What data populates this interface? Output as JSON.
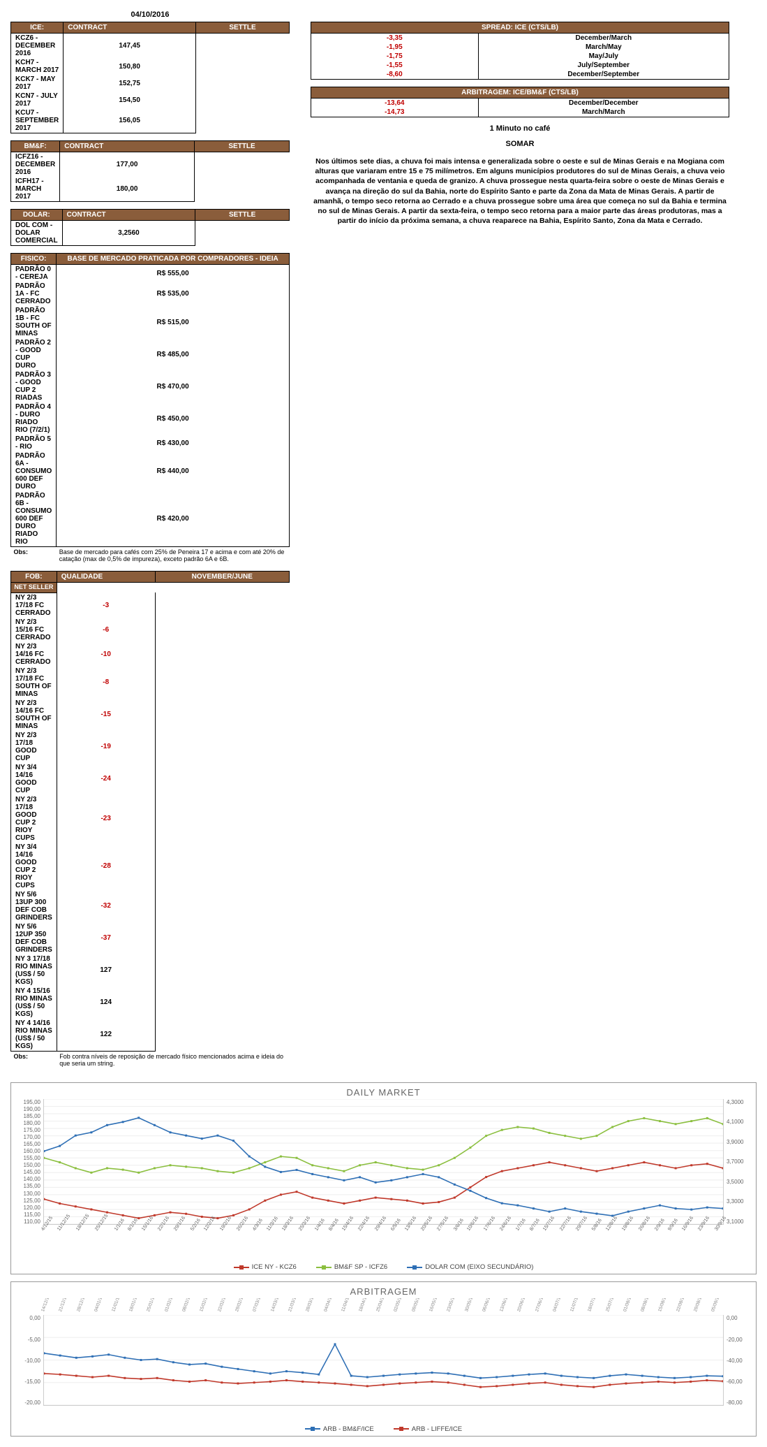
{
  "date": "04/10/2016",
  "colors": {
    "header_bg": "#8a5d3b",
    "header_fg": "#ffffff",
    "negative": "#c00000",
    "series_ice": "#c0392b",
    "series_bmf": "#8bbf3f",
    "series_dolar": "#2e6fb5",
    "series_arb1": "#2e6fb5",
    "series_arb2": "#c0392b",
    "grid": "#eeeeee",
    "axis_text": "#666666"
  },
  "ice": {
    "label": "ICE:",
    "headers": [
      "CONTRACT",
      "SETTLE"
    ],
    "rows": [
      [
        "KCZ6 - DECEMBER 2016",
        "147,45"
      ],
      [
        "KCH7 - MARCH 2017",
        "150,80"
      ],
      [
        "KCK7 - MAY 2017",
        "152,75"
      ],
      [
        "KCN7 - JULY 2017",
        "154,50"
      ],
      [
        "KCU7 - SEPTEMBER 2017",
        "156,05"
      ]
    ]
  },
  "spread": {
    "title": "SPREAD: ICE (CTS/LB)",
    "rows": [
      [
        "-3,35",
        "December/March"
      ],
      [
        "-1,95",
        "March/May"
      ],
      [
        "-1,75",
        "May/July"
      ],
      [
        "-1,55",
        "July/September"
      ],
      [
        "-8,60",
        "December/September"
      ]
    ]
  },
  "bmf": {
    "label": "BM&F:",
    "headers": [
      "CONTRACT",
      "SETTLE"
    ],
    "rows": [
      [
        "ICFZ16 - DECEMBER 2016",
        "177,00"
      ],
      [
        "ICFH17 - MARCH 2017",
        "180,00"
      ]
    ]
  },
  "arbitragem_table": {
    "title": "ARBITRAGEM: ICE/BM&F (CTS/LB)",
    "rows": [
      [
        "-13,64",
        "December/December"
      ],
      [
        "-14,73",
        "March/March"
      ]
    ]
  },
  "dolar": {
    "label": "DOLAR:",
    "headers": [
      "CONTRACT",
      "SETTLE"
    ],
    "rows": [
      [
        "DOL COM - DOLAR COMERCIAL",
        "3,2560"
      ]
    ]
  },
  "fisico": {
    "label": "FISICO:",
    "title": "BASE DE MERCADO PRATICADA POR COMPRADORES - IDEIA",
    "rows": [
      [
        "PADRÃO 0 - CEREJA",
        "R$ 555,00"
      ],
      [
        "PADRÃO 1A - FC CERRADO",
        "R$ 535,00"
      ],
      [
        "PADRÃO 1B - FC SOUTH OF MINAS",
        "R$ 515,00"
      ],
      [
        "PADRÃO 2 - GOOD CUP DURO",
        "R$ 485,00"
      ],
      [
        "PADRÃO 3 - GOOD CUP 2 RIADAS",
        "R$ 470,00"
      ],
      [
        "PADRÃO 4 - DURO RIADO RIO (7/2/1)",
        "R$ 450,00"
      ],
      [
        "PADRÃO 5 - RIO",
        "R$ 430,00"
      ],
      [
        "PADRÃO 6A - CONSUMO 600 DEF DURO",
        "R$ 440,00"
      ],
      [
        "PADRÃO 6B - CONSUMO 600 DEF DURO RIADO RIO",
        "R$ 420,00"
      ]
    ],
    "obs_label": "Obs:",
    "obs": "Base de mercado para cafés com 25% de Peneira 17 e acima e com até 20% de catação (max de 0,5% de impureza), exceto padrão 6A e 6B."
  },
  "fob": {
    "label": "FOB:",
    "side_label": "NET SELLER",
    "headers": [
      "QUALIDADE",
      "NOVEMBER/JUNE"
    ],
    "rows": [
      [
        "NY 2/3 17/18 FC CERRADO",
        "-3",
        true
      ],
      [
        "NY 2/3 15/16 FC CERRADO",
        "-6",
        true
      ],
      [
        "NY 2/3 14/16 FC CERRADO",
        "-10",
        true
      ],
      [
        "NY 2/3 17/18 FC SOUTH OF MINAS",
        "-8",
        true
      ],
      [
        "NY 2/3 14/16 FC SOUTH OF MINAS",
        "-15",
        true
      ],
      [
        "NY 2/3 17/18 GOOD CUP",
        "-19",
        true
      ],
      [
        "NY 3/4 14/16 GOOD CUP",
        "-24",
        true
      ],
      [
        "NY 2/3 17/18 GOOD CUP 2 RIOY CUPS",
        "-23",
        true
      ],
      [
        "NY 3/4 14/16 GOOD CUP 2 RIOY CUPS",
        "-28",
        true
      ],
      [
        "NY 5/6 13UP 300 DEF COB GRINDERS",
        "-32",
        true
      ],
      [
        "NY 5/6 12UP 350 DEF COB GRINDERS",
        "-37",
        true
      ],
      [
        "NY 3 17/18 RIO MINAS (US$ / 50 KGS)",
        "127",
        false
      ],
      [
        "NY 4 15/16 RIO MINAS (US$ / 50 KGS)",
        "124",
        false
      ],
      [
        "NY 4 14/16 RIO MINAS (US$ / 50 KGS)",
        "122",
        false
      ]
    ],
    "obs_label": "Obs:",
    "obs": "Fob contra níveis de reposição de mercado físico mencionados acima e ideia do que seria um string."
  },
  "minuto": {
    "title": "1 Minuto no café",
    "sub": "SOMAR",
    "body": "Nos últimos sete dias, a chuva foi mais intensa e generalizada sobre o oeste e sul de Minas Gerais e na Mogiana com alturas que variaram entre 15 e 75 milímetros. Em alguns municípios produtores do sul de Minas Gerais, a chuva veio acompanhada de ventania e queda de granizo. A chuva prossegue nesta quarta-feira sobre o oeste de Minas Gerais e avança na direção do sul da Bahia, norte do Espírito Santo e parte da Zona da Mata de Minas Gerais. A partir de amanhã, o tempo seco retorna ao Cerrado e a chuva prossegue sobre uma área que começa no sul da Bahia e termina no sul de Minas Gerais. A partir da sexta-feira, o tempo seco retorna para a maior parte das áreas produtoras, mas a partir do início da próxima semana, a chuva reaparece na Bahia, Espírito Santo, Zona da Mata e Cerrado."
  },
  "daily_chart": {
    "title": "DAILY MARKET",
    "y_left": [
      "195,00",
      "190,00",
      "185,00",
      "180,00",
      "175,00",
      "170,00",
      "165,00",
      "160,00",
      "155,00",
      "150,00",
      "145,00",
      "140,00",
      "135,00",
      "130,00",
      "125,00",
      "120,00",
      "115,00",
      "110,00"
    ],
    "y_right": [
      "4,3000",
      "4,1000",
      "3,9000",
      "3,7000",
      "3,5000",
      "3,3000",
      "3,1000"
    ],
    "y_left_min": 110,
    "y_left_max": 195,
    "y_right_min": 3.1,
    "y_right_max": 4.3,
    "x_labels": [
      "4/12/15",
      "11/12/15",
      "18/12/15",
      "25/12/15",
      "1/1/16",
      "8/1/16",
      "15/1/16",
      "22/1/16",
      "29/1/16",
      "5/2/16",
      "12/2/16",
      "19/2/16",
      "26/2/16",
      "4/3/16",
      "11/3/16",
      "18/3/16",
      "25/3/16",
      "1/4/16",
      "8/4/16",
      "15/4/16",
      "22/4/16",
      "29/4/16",
      "6/5/16",
      "13/5/16",
      "20/5/16",
      "27/5/16",
      "3/6/16",
      "10/6/16",
      "17/6/16",
      "24/6/16",
      "1/7/16",
      "8/7/16",
      "15/7/16",
      "22/7/16",
      "29/7/16",
      "5/8/16",
      "12/8/16",
      "19/8/16",
      "26/8/16",
      "2/9/16",
      "9/9/16",
      "16/9/16",
      "23/9/16",
      "30/9/16"
    ],
    "series": {
      "ice": {
        "label": "ICE NY - KCZ6",
        "color": "#c0392b",
        "axis": "left",
        "data": [
          127,
          124,
          122,
          120,
          118,
          116,
          114,
          116,
          118,
          117,
          115,
          114,
          116,
          120,
          126,
          130,
          132,
          128,
          126,
          124,
          126,
          128,
          127,
          126,
          124,
          125,
          128,
          135,
          142,
          146,
          148,
          150,
          152,
          150,
          148,
          146,
          148,
          150,
          152,
          150,
          148,
          150,
          151,
          148
        ]
      },
      "bmf": {
        "label": "BM&F SP - ICFZ6",
        "color": "#8bbf3f",
        "axis": "left",
        "data": [
          155,
          152,
          148,
          145,
          148,
          147,
          145,
          148,
          150,
          149,
          148,
          146,
          145,
          148,
          152,
          156,
          155,
          150,
          148,
          146,
          150,
          152,
          150,
          148,
          147,
          150,
          155,
          162,
          170,
          174,
          176,
          175,
          172,
          170,
          168,
          170,
          176,
          180,
          182,
          180,
          178,
          180,
          182,
          178
        ]
      },
      "dolar": {
        "label": "DOLAR COM (EIXO SECUNDÁRIO)",
        "color": "#2e6fb5",
        "axis": "right",
        "data": [
          3.8,
          3.85,
          3.95,
          3.98,
          4.05,
          4.08,
          4.12,
          4.05,
          3.98,
          3.95,
          3.92,
          3.95,
          3.9,
          3.75,
          3.65,
          3.6,
          3.62,
          3.58,
          3.55,
          3.52,
          3.55,
          3.5,
          3.52,
          3.55,
          3.58,
          3.55,
          3.48,
          3.42,
          3.35,
          3.3,
          3.28,
          3.25,
          3.22,
          3.25,
          3.22,
          3.2,
          3.18,
          3.22,
          3.25,
          3.28,
          3.25,
          3.24,
          3.26,
          3.25
        ]
      }
    }
  },
  "arb_chart": {
    "title": "ARBITRAGEM",
    "y_left": [
      "0,00",
      "-5,00",
      "-10,00",
      "-15,00",
      "-20,00"
    ],
    "y_right": [
      "0,00",
      "-20,00",
      "-40,00",
      "-60,00",
      "-80,00"
    ],
    "y_left_min": -20,
    "y_left_max": 0,
    "y_right_min": -80,
    "y_right_max": 0,
    "x_labels": [
      "14/12/15",
      "21/12/15",
      "28/12/15",
      "04/01/16",
      "11/01/16",
      "18/01/16",
      "25/01/16",
      "01/02/16",
      "08/02/16",
      "15/02/16",
      "22/02/16",
      "29/02/16",
      "07/03/16",
      "14/03/16",
      "21/03/16",
      "28/03/16",
      "04/04/16",
      "11/04/16",
      "18/04/16",
      "25/04/16",
      "02/05/16",
      "09/05/16",
      "16/05/16",
      "23/05/16",
      "30/05/16",
      "06/06/16",
      "13/06/16",
      "20/06/16",
      "27/06/16",
      "04/07/16",
      "11/07/16",
      "18/07/16",
      "25/07/16",
      "01/08/16",
      "08/08/16",
      "15/08/16",
      "22/08/16",
      "29/08/16",
      "05/09/16",
      "12/09/16",
      "19/09/16",
      "26/09/16",
      "03/10/16"
    ],
    "series": {
      "arb1": {
        "label": "ARB - BM&F/ICE",
        "color": "#2e6fb5",
        "axis": "left",
        "data": [
          -8.5,
          -9.0,
          -9.5,
          -9.2,
          -8.8,
          -9.5,
          -10.0,
          -9.8,
          -10.5,
          -11.0,
          -10.8,
          -11.5,
          -12.0,
          -12.5,
          -13.0,
          -12.5,
          -12.8,
          -13.2,
          -6.5,
          -13.5,
          -13.8,
          -13.5,
          -13.2,
          -13.0,
          -12.8,
          -13.0,
          -13.5,
          -14.0,
          -13.8,
          -13.5,
          -13.2,
          -13.0,
          -13.5,
          -13.8,
          -14.0,
          -13.5,
          -13.2,
          -13.5,
          -13.8,
          -14.0,
          -13.8,
          -13.5,
          -13.6
        ]
      },
      "arb2": {
        "label": "ARB - LIFFE/ICE",
        "color": "#c0392b",
        "axis": "left",
        "data": [
          -13.0,
          -13.2,
          -13.5,
          -13.8,
          -13.5,
          -14.0,
          -14.2,
          -14.0,
          -14.5,
          -14.8,
          -14.5,
          -15.0,
          -15.2,
          -15.0,
          -14.8,
          -14.5,
          -14.8,
          -15.0,
          -15.2,
          -15.5,
          -15.8,
          -15.5,
          -15.2,
          -15.0,
          -14.8,
          -15.0,
          -15.5,
          -16.0,
          -15.8,
          -15.5,
          -15.2,
          -15.0,
          -15.5,
          -15.8,
          -16.0,
          -15.5,
          -15.2,
          -15.0,
          -14.8,
          -15.0,
          -14.8,
          -14.5,
          -14.7
        ]
      }
    }
  }
}
